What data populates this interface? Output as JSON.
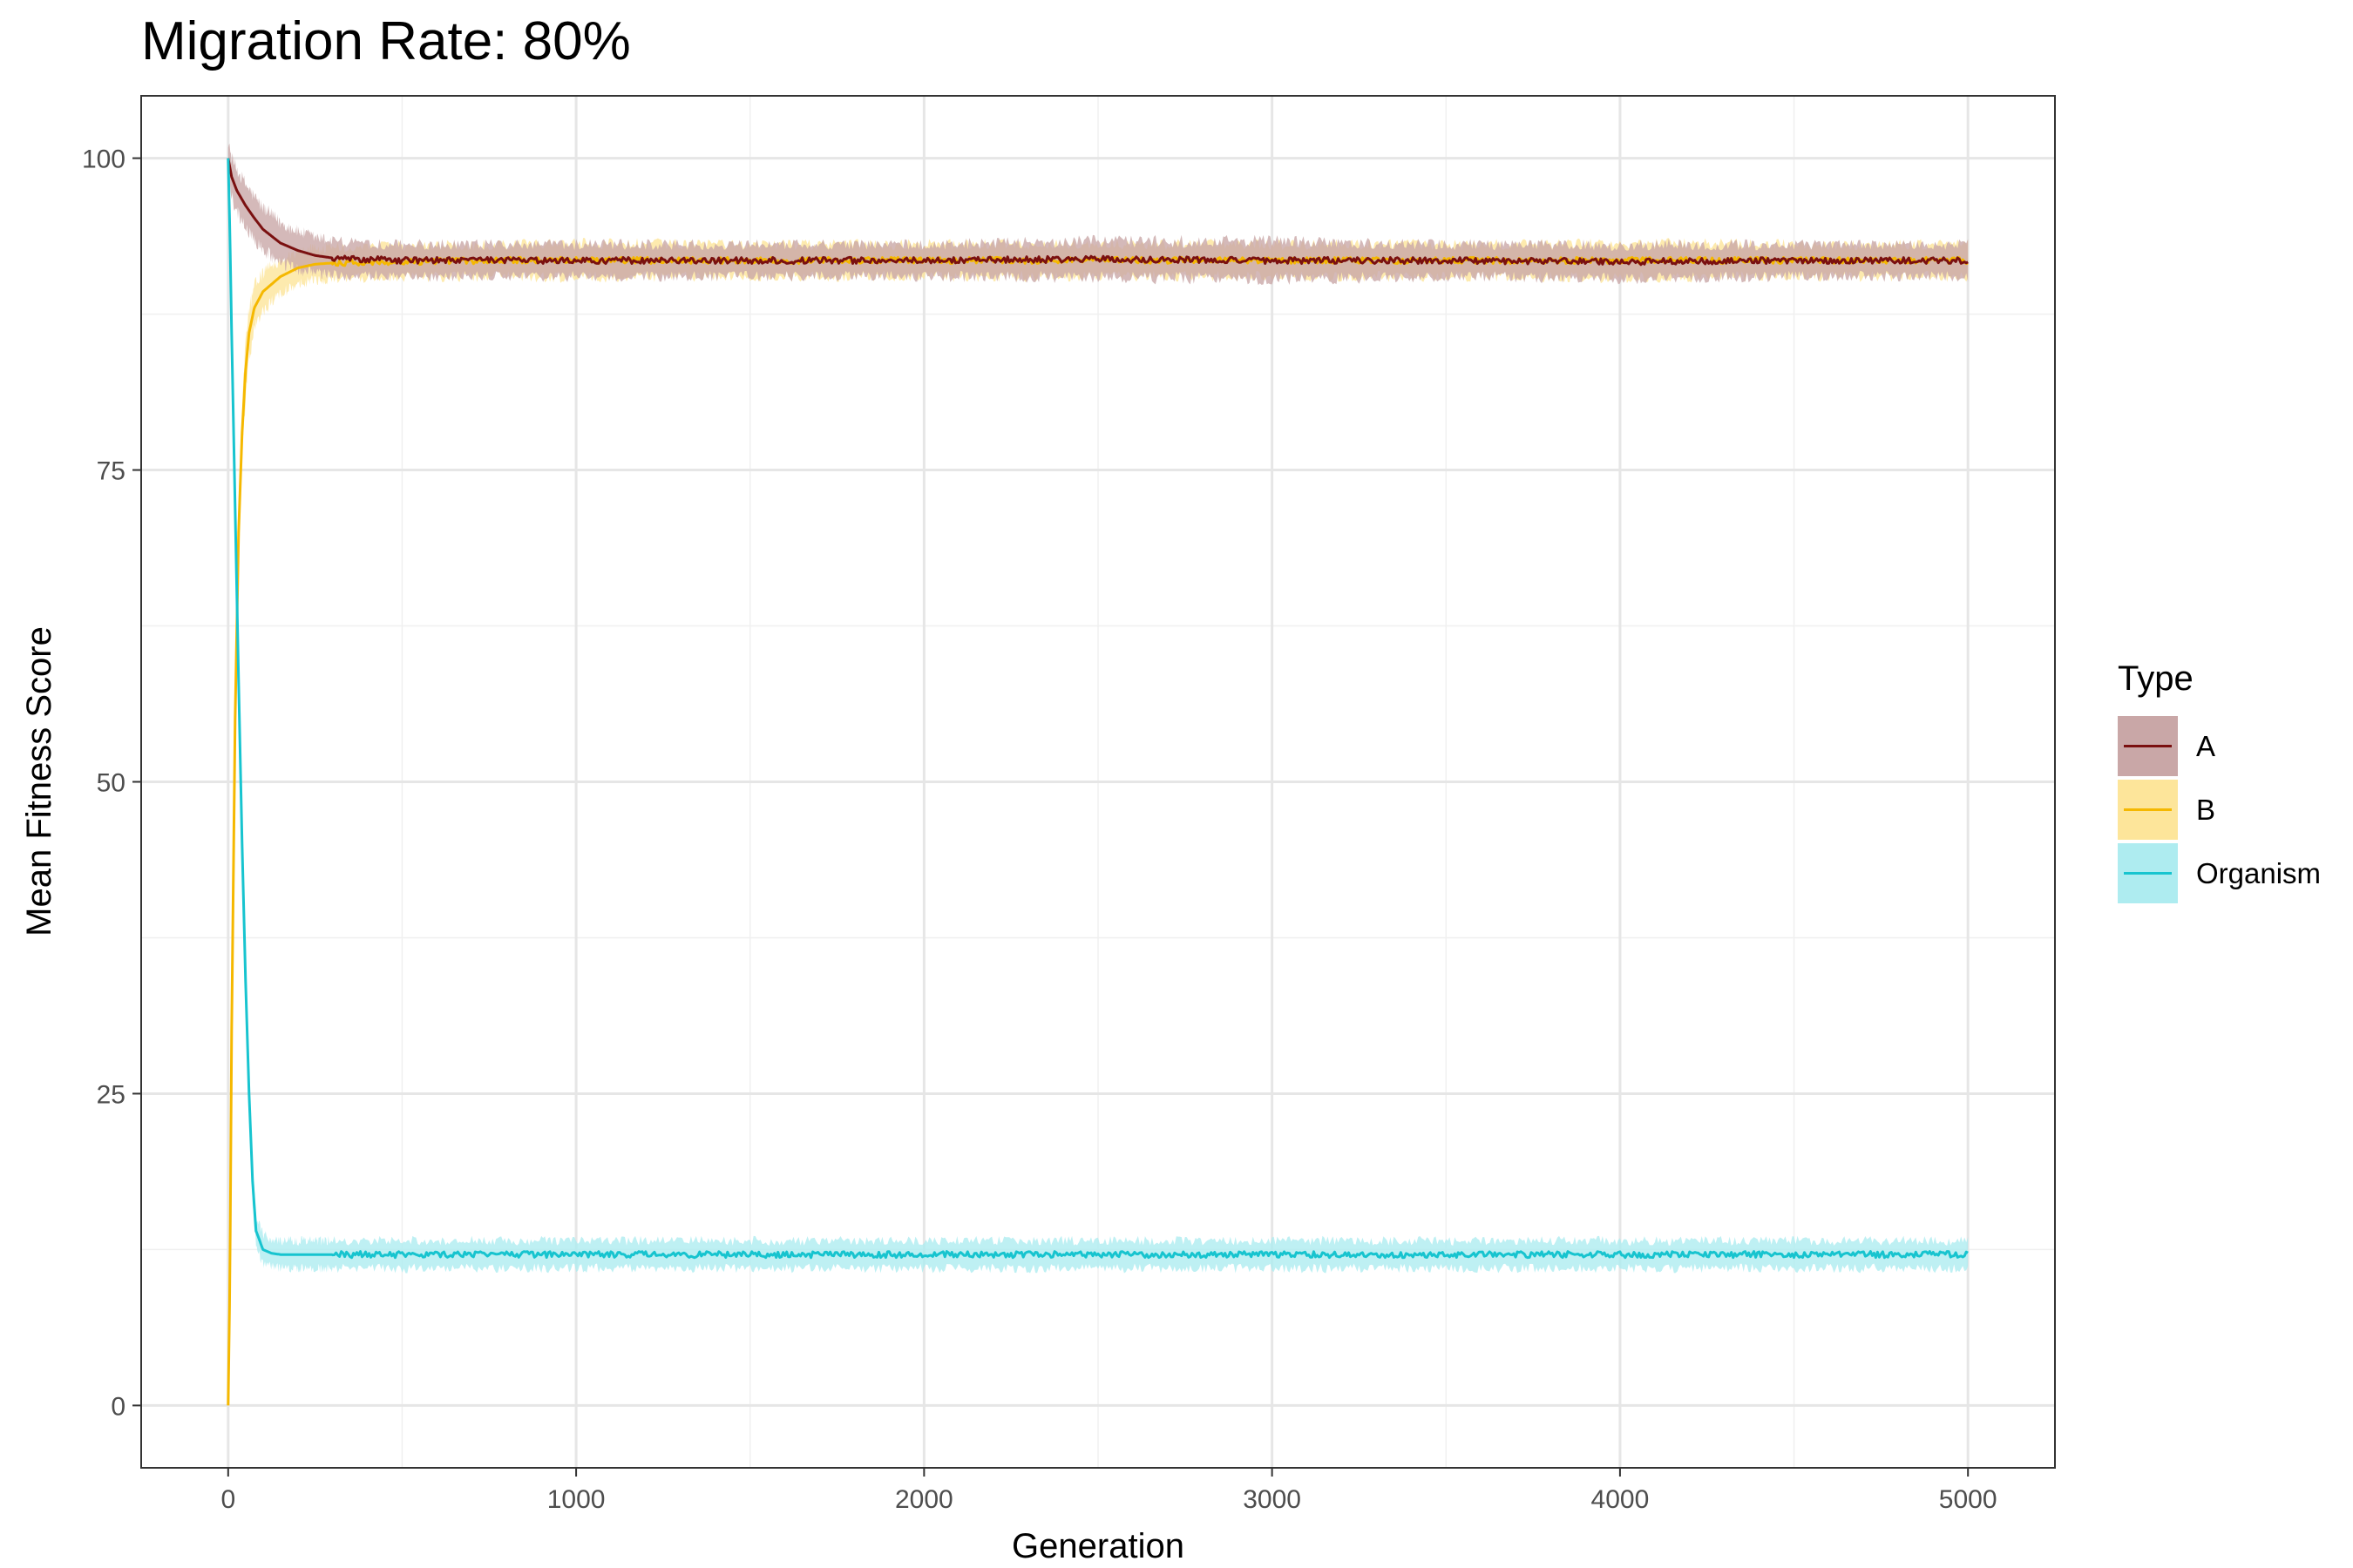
{
  "chart_data": {
    "type": "line",
    "title": "Migration Rate: 80%",
    "xlabel": "Generation",
    "ylabel": "Mean Fitness Score",
    "xlim": [
      -250,
      5250
    ],
    "ylim": [
      -5,
      105
    ],
    "xticks": [
      0,
      1000,
      2000,
      3000,
      4000,
      5000
    ],
    "xtick_labels": [
      "0",
      "1000",
      "2000",
      "3000",
      "4000",
      "5000"
    ],
    "yticks": [
      0,
      25,
      50,
      75,
      100
    ],
    "ytick_labels": [
      "0",
      "25",
      "50",
      "75",
      "100"
    ],
    "grid": true,
    "ribbon": true,
    "legend": {
      "title": "Type",
      "position": "right"
    },
    "series": [
      {
        "name": "A",
        "color": "#7a1010",
        "fill": "#c9a7a7",
        "x": [
          0,
          10,
          25,
          50,
          75,
          100,
          150,
          200,
          250,
          300,
          400,
          500,
          750,
          1000,
          1500,
          2000,
          2500,
          3000,
          3500,
          4000,
          4500,
          5000
        ],
        "y": [
          100,
          98.5,
          97.4,
          96.2,
          95.2,
          94.3,
          93.2,
          92.6,
          92.2,
          92.0,
          91.9,
          91.8,
          91.8,
          91.8,
          91.8,
          91.8,
          91.9,
          91.8,
          91.8,
          91.7,
          91.8,
          91.8
        ],
        "band": [
          1.5,
          1.8,
          2.0,
          2.0,
          2.0,
          2.0,
          1.9,
          1.8,
          1.7,
          1.6,
          1.5,
          1.5,
          1.5,
          1.5,
          1.5,
          1.5,
          1.7,
          1.8,
          1.5,
          1.6,
          1.5,
          1.5
        ]
      },
      {
        "name": "B",
        "color": "#f5b800",
        "fill": "#fde59a",
        "x": [
          0,
          5,
          10,
          20,
          30,
          40,
          50,
          60,
          75,
          100,
          150,
          200,
          250,
          300,
          400,
          500,
          750,
          1000,
          1500,
          2000,
          2500,
          3000,
          3500,
          4000,
          4500,
          5000
        ],
        "y": [
          0,
          10,
          30,
          55,
          70,
          78,
          83,
          86,
          88,
          89.3,
          90.5,
          91.2,
          91.5,
          91.6,
          91.7,
          91.7,
          91.8,
          91.8,
          91.8,
          91.8,
          91.8,
          91.8,
          91.8,
          91.8,
          91.8,
          91.8
        ],
        "band": [
          0.5,
          1.0,
          2.0,
          2.5,
          2.5,
          2.5,
          2.5,
          2.3,
          2.0,
          1.8,
          1.6,
          1.5,
          1.5,
          1.5,
          1.5,
          1.5,
          1.5,
          1.6,
          1.5,
          1.5,
          1.5,
          1.5,
          1.5,
          1.6,
          1.5,
          1.5
        ]
      },
      {
        "name": "Organism",
        "color": "#17c4cf",
        "fill": "#aeecf0",
        "x": [
          0,
          5,
          10,
          20,
          30,
          40,
          50,
          60,
          70,
          80,
          100,
          125,
          150,
          200,
          300,
          500,
          750,
          1000,
          1500,
          2000,
          2500,
          3000,
          3500,
          4000,
          4500,
          5000
        ],
        "y": [
          100,
          94,
          86,
          72,
          58,
          45,
          34,
          25,
          18,
          14,
          12.5,
          12.2,
          12.1,
          12.1,
          12.1,
          12.1,
          12.1,
          12.1,
          12.1,
          12.1,
          12.1,
          12.1,
          12.1,
          12.1,
          12.1,
          12.1
        ],
        "band": [
          0.5,
          1.0,
          1.5,
          2.0,
          2.0,
          2.0,
          2.0,
          2.0,
          1.8,
          1.5,
          1.4,
          1.3,
          1.3,
          1.3,
          1.3,
          1.3,
          1.3,
          1.3,
          1.3,
          1.3,
          1.3,
          1.3,
          1.3,
          1.3,
          1.3,
          1.3
        ]
      }
    ]
  }
}
